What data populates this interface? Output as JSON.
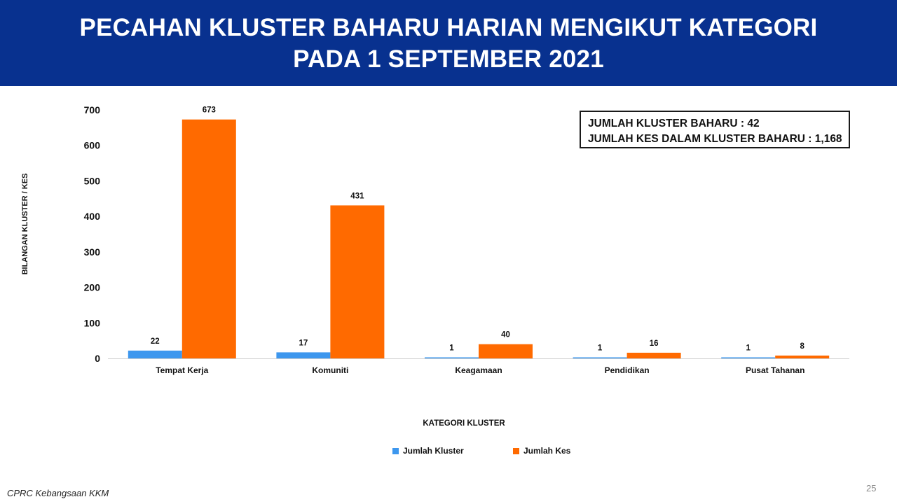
{
  "header": {
    "title_line1": "PECAHAN KLUSTER BAHARU HARIAN MENGIKUT KATEGORI",
    "title_line2": "PADA 1 SEPTEMBER 2021"
  },
  "summary": {
    "line1": "JUMLAH KLUSTER BAHARU : 42",
    "line2": "JUMLAH KES DALAM KLUSTER BAHARU : 1,168"
  },
  "chart_data": {
    "type": "bar",
    "title": "PECAHAN KLUSTER BAHARU HARIAN MENGIKUT KATEGORI PADA 1 SEPTEMBER 2021",
    "xlabel": "KATEGORI KLUSTER",
    "ylabel": "BILANGAN KLUSTER / KES",
    "ylim": [
      0,
      700
    ],
    "yticks": [
      0,
      100,
      200,
      300,
      400,
      500,
      600,
      700
    ],
    "grid": false,
    "legend_position": "bottom",
    "categories": [
      "Tempat Kerja",
      "Komuniti",
      "Keagamaan",
      "Pendidikan",
      "Pusat Tahanan"
    ],
    "series": [
      {
        "name": "Jumlah Kluster",
        "color": "#3d97ee",
        "values": [
          22,
          17,
          1,
          1,
          1
        ]
      },
      {
        "name": "Jumlah Kes",
        "color": "#ff6a00",
        "values": [
          673,
          431,
          40,
          16,
          8
        ]
      }
    ]
  },
  "footer": {
    "source": "CPRC Kebangsaan KKM",
    "page_number": "25"
  }
}
